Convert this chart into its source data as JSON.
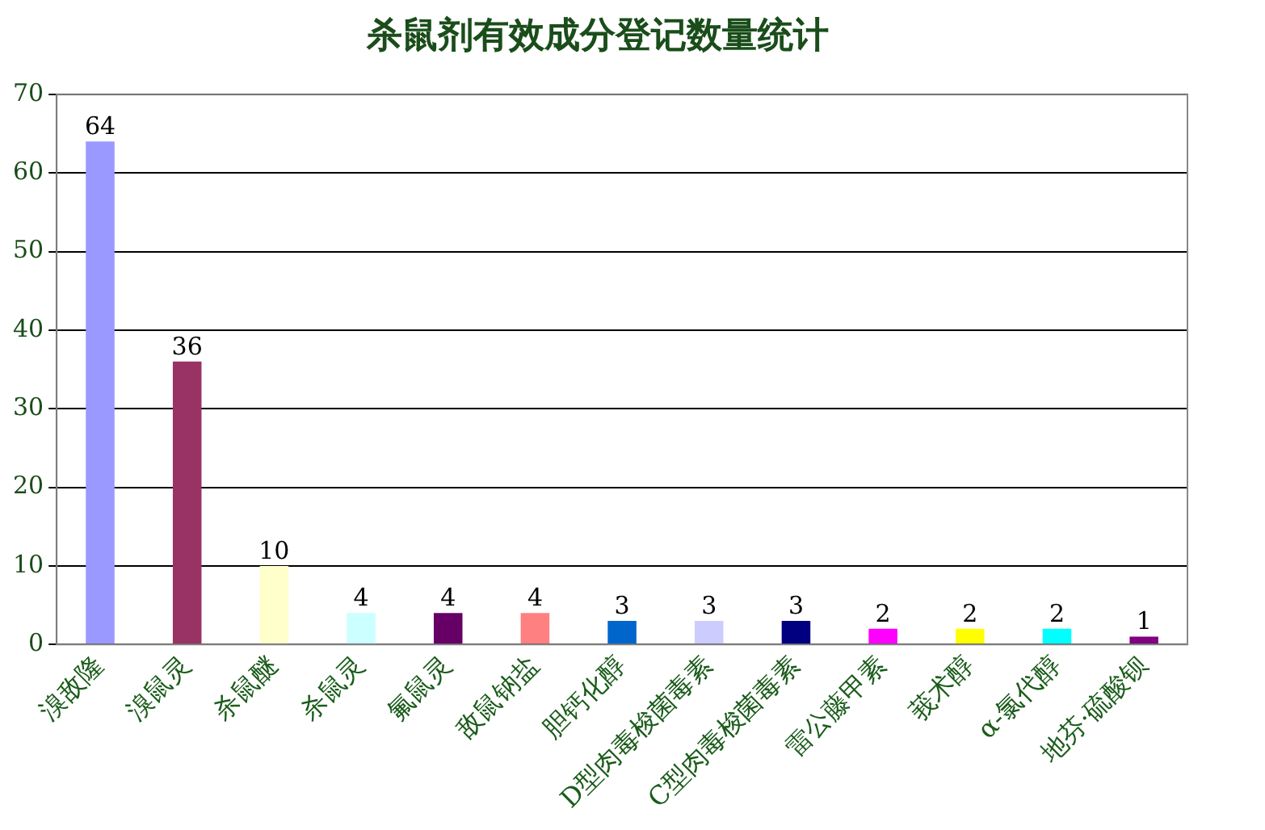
{
  "chart_data": {
    "type": "bar",
    "title": "杀鼠剂有效成分登记数量统计",
    "categories": [
      "溴敌隆",
      "溴鼠灵",
      "杀鼠醚",
      "杀鼠灵",
      "氟鼠灵",
      "敌鼠钠盐",
      "胆钙化醇",
      "D型肉毒梭菌毒素",
      "C型肉毒梭菌毒素",
      "雷公藤甲素",
      "莪术醇",
      "α-氯代醇",
      "地芬·硫酸钡"
    ],
    "values": [
      64,
      36,
      10,
      4,
      4,
      4,
      3,
      3,
      3,
      2,
      2,
      2,
      1
    ],
    "colors": [
      "#9999ff",
      "#993366",
      "#ffffcc",
      "#ccffff",
      "#660066",
      "#ff8080",
      "#0066cc",
      "#ccccff",
      "#000080",
      "#ff00ff",
      "#ffff00",
      "#00ffff",
      "#800080"
    ],
    "ylim": [
      0,
      70
    ],
    "yticks": [
      0,
      10,
      20,
      30,
      40,
      50,
      60,
      70
    ],
    "grid": "y",
    "data_labels": true
  }
}
